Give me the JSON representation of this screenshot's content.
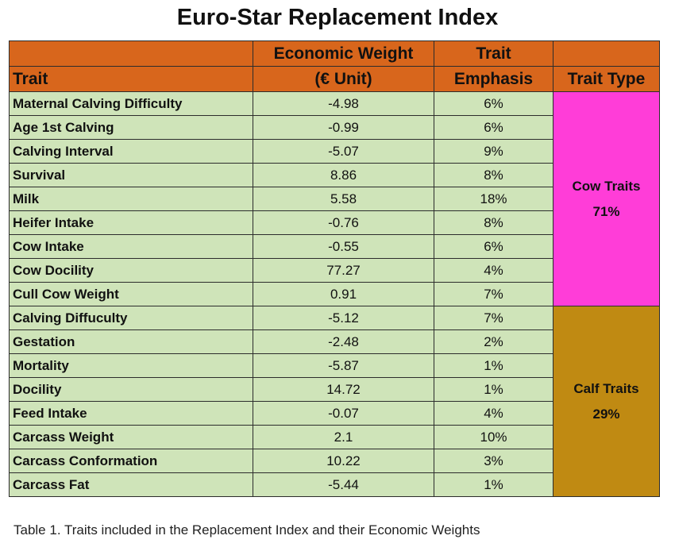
{
  "title": "Euro-Star Replacement Index",
  "headers": {
    "trait": "Trait",
    "economic_weight_line1": "Economic Weight",
    "economic_weight_line2": "(€ Unit)",
    "trait_emphasis_line1": "Trait",
    "trait_emphasis_line2": "Emphasis",
    "trait_type": "Trait Type"
  },
  "rows": [
    {
      "trait": "Maternal Calving Difficulty",
      "weight": "-4.98",
      "emphasis": "6%"
    },
    {
      "trait": "Age 1st Calving",
      "weight": "-0.99",
      "emphasis": "6%"
    },
    {
      "trait": "Calving Interval",
      "weight": "-5.07",
      "emphasis": "9%"
    },
    {
      "trait": "Survival",
      "weight": "8.86",
      "emphasis": "8%"
    },
    {
      "trait": "Milk",
      "weight": "5.58",
      "emphasis": "18%"
    },
    {
      "trait": "Heifer Intake",
      "weight": "-0.76",
      "emphasis": "8%"
    },
    {
      "trait": "Cow Intake",
      "weight": "-0.55",
      "emphasis": "6%"
    },
    {
      "trait": "Cow Docility",
      "weight": "77.27",
      "emphasis": "4%"
    },
    {
      "trait": "Cull Cow Weight",
      "weight": "0.91",
      "emphasis": "7%"
    },
    {
      "trait": "Calving Diffuculty",
      "weight": "-5.12",
      "emphasis": "7%"
    },
    {
      "trait": "Gestation",
      "weight": "-2.48",
      "emphasis": "2%"
    },
    {
      "trait": "Mortality",
      "weight": "-5.87",
      "emphasis": "1%"
    },
    {
      "trait": "Docility",
      "weight": "14.72",
      "emphasis": "1%"
    },
    {
      "trait": "Feed Intake",
      "weight": "-0.07",
      "emphasis": "4%"
    },
    {
      "trait": "Carcass Weight",
      "weight": "2.1",
      "emphasis": "10%"
    },
    {
      "trait": "Carcass Conformation",
      "weight": "10.22",
      "emphasis": "3%"
    },
    {
      "trait": "Carcass Fat",
      "weight": "-5.44",
      "emphasis": "1%"
    }
  ],
  "groups": {
    "cow": {
      "label": "Cow Traits",
      "percent": "71%",
      "color": "#ff3dd8"
    },
    "calf": {
      "label": "Calf Traits",
      "percent": "29%",
      "color": "#c08a12"
    }
  },
  "colors": {
    "header": "#d8661c",
    "cell": "#cfe4b9"
  },
  "caption": "Table 1. Traits included in the Replacement Index and their Economic Weights"
}
